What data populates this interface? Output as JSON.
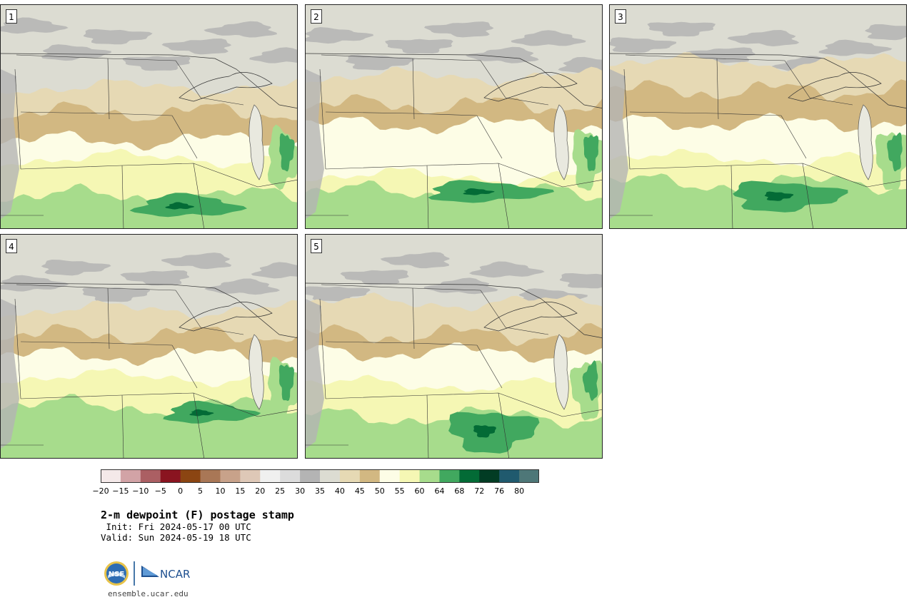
{
  "panels": [
    {
      "label": "1"
    },
    {
      "label": "2"
    },
    {
      "label": "3"
    },
    {
      "label": "4"
    },
    {
      "label": "5"
    }
  ],
  "colorbar": {
    "colors": [
      "#f4e9e9",
      "#d2a3a6",
      "#ab5f63",
      "#8a1420",
      "#8b4512",
      "#a97756",
      "#c8a28a",
      "#dec8b7",
      "#f0f0ef",
      "#dcdcdc",
      "#b4b4b4",
      "#dcdcd2",
      "#e6d9b4",
      "#d2b882",
      "#fdfde6",
      "#f5f7b4",
      "#a7dc8c",
      "#41a85f",
      "#036b36",
      "#023c24",
      "#205a6e",
      "#4e7778"
    ],
    "ticks": [
      "−20",
      "−15",
      "−10",
      "−5",
      "0",
      "5",
      "10",
      "15",
      "20",
      "25",
      "30",
      "35",
      "40",
      "45",
      "50",
      "55",
      "60",
      "64",
      "68",
      "72",
      "76",
      "80"
    ]
  },
  "title": {
    "main": "2-m dewpoint (F) postage stamp",
    "init": " Init: Fri 2024-05-17 00 UTC",
    "valid": "Valid: Sun 2024-05-19 18 UTC"
  },
  "logos": {
    "nsf_text": "NSF",
    "ncar_text": "NCAR",
    "nsf_color": "#0a4a8c",
    "ncar_color": "#1d4f8f"
  },
  "footer": {
    "site": "ensemble.ucar.edu"
  }
}
